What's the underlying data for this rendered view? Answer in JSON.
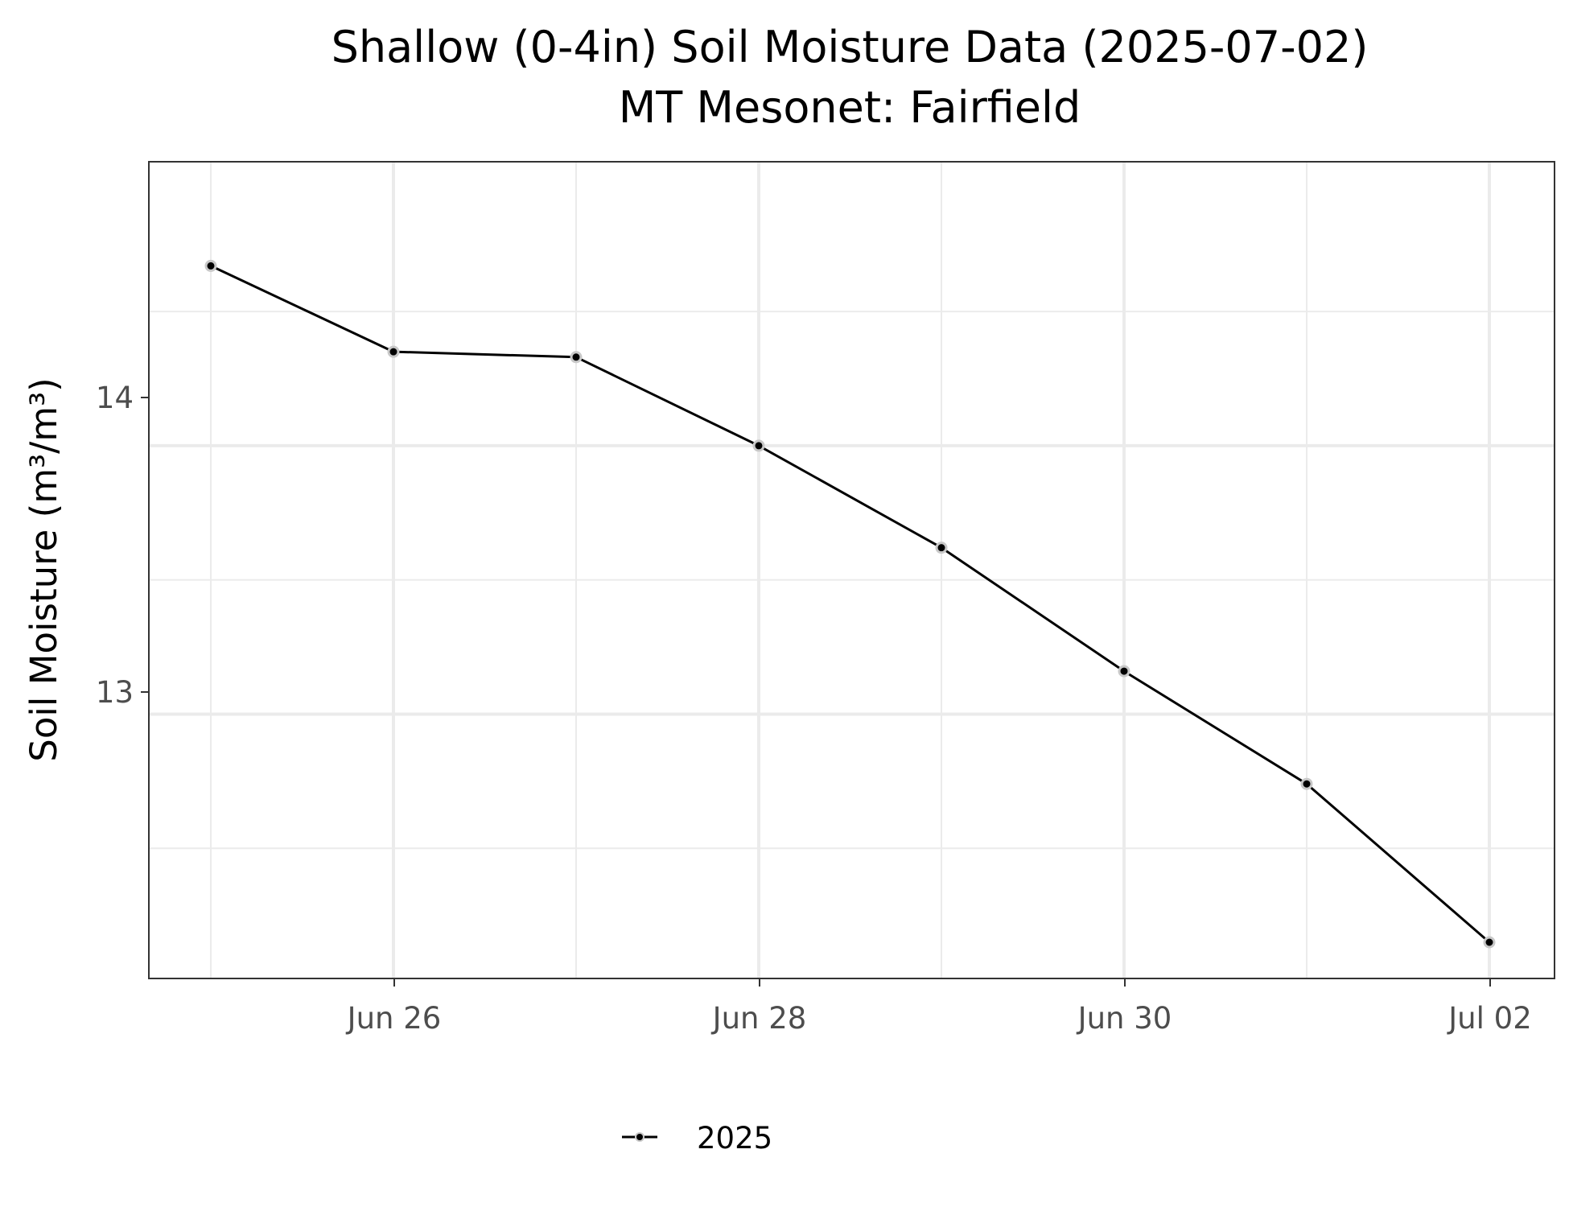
{
  "chart_data": {
    "type": "line",
    "title": "Shallow (0-4in) Soil Moisture Data (2025-07-02)",
    "subtitle": "MT Mesonet: Fairfield",
    "xlabel": "",
    "ylabel": "Soil Moisture (m³/m³)",
    "x_tick_labels": [
      "Jun 26",
      "Jun 28",
      "Jun 30",
      "Jul 02"
    ],
    "y_tick_labels": [
      "13",
      "14"
    ],
    "ylim": [
      12.15,
      14.92
    ],
    "y_ticks": [
      13,
      14
    ],
    "y_minor_ticks": [
      12.5,
      13.5,
      14.5
    ],
    "x": [
      "2025-06-25",
      "2025-06-26",
      "2025-06-27",
      "2025-06-28",
      "2025-06-29",
      "2025-06-30",
      "2025-07-01",
      "2025-07-02"
    ],
    "series": [
      {
        "name": "2025",
        "values": [
          14.67,
          14.35,
          14.33,
          14.0,
          13.62,
          13.16,
          12.74,
          12.15
        ],
        "color": "#000000"
      }
    ],
    "grid": true,
    "legend_position": "bottom"
  }
}
